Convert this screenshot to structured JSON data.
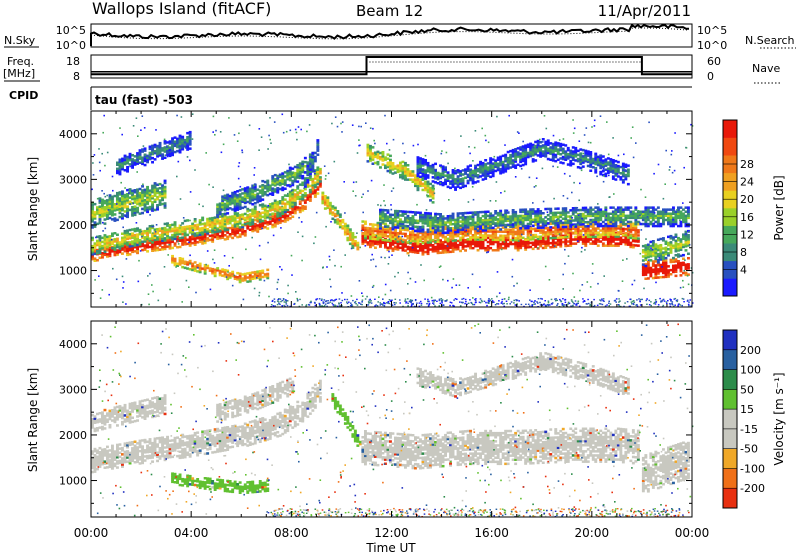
{
  "header": {
    "radar": "Wallops Island (fitACF)",
    "beam": "Beam 12",
    "date": "11/Apr/2011"
  },
  "side_labels": {
    "nsky": "N.Sky",
    "freq": "Freq.",
    "freq_unit": "[MHz]",
    "cpid": "CPID",
    "nsearch": "N.Search",
    "nave": "Nave"
  },
  "cpid_text": "tau (fast) -503",
  "noise_panel": {
    "left_ticks": [
      "10^5",
      "10^0"
    ],
    "right_ticks": [
      "10^5",
      "10^0"
    ]
  },
  "freq_panel": {
    "left_ticks": [
      "18",
      "8"
    ],
    "right_ticks": [
      "60",
      "0"
    ],
    "nave_series": {
      "x": [
        0,
        11.0,
        11.0,
        22.0,
        22.0,
        24
      ],
      "y": [
        8,
        8,
        57,
        57,
        8,
        8
      ]
    },
    "freq_series": {
      "x": [
        0,
        24
      ],
      "y": [
        10.5,
        10.5
      ]
    }
  },
  "x_axis": {
    "label": "Time UT",
    "range": [
      0,
      24
    ],
    "ticks": [
      "00:00",
      "04:00",
      "08:00",
      "12:00",
      "16:00",
      "20:00",
      "00:00"
    ]
  },
  "y_axis": {
    "label": "Slant Range [km]",
    "range": [
      200,
      4500
    ],
    "ticks": [
      "1000",
      "2000",
      "3000",
      "4000"
    ]
  },
  "chart_data": [
    {
      "type": "heatmap",
      "title": "Power",
      "x_range": [
        0,
        24
      ],
      "y_range": [
        200,
        4500
      ],
      "colorbar": {
        "label": "Power [dB]",
        "ticks": [
          "4",
          "8",
          "12",
          "16",
          "20",
          "24",
          "28"
        ],
        "colors": [
          "#1a1aff",
          "#2850c0",
          "#3a8a78",
          "#46a85a",
          "#9ad02a",
          "#e8d020",
          "#f0a020",
          "#f07818",
          "#f04810",
          "#e81808"
        ]
      },
      "bands": [
        {
          "x": [
            0.0,
            2.0,
            4.0,
            6.0,
            7.5,
            8.5,
            9.1
          ],
          "y": [
            1350,
            1550,
            1700,
            1900,
            2150,
            2500,
            2900
          ],
          "w": 140,
          "level": 8
        },
        {
          "x": [
            0.0,
            2.0,
            4.0,
            6.0,
            7.5,
            8.5,
            9.1
          ],
          "y": [
            1550,
            1780,
            1950,
            2150,
            2400,
            2800,
            3150
          ],
          "w": 190,
          "level": 4
        },
        {
          "x": [
            0.0,
            1.5,
            3.0
          ],
          "y": [
            2250,
            2500,
            2700
          ],
          "w": 300,
          "level": 3
        },
        {
          "x": [
            1.0,
            2.5,
            4.0
          ],
          "y": [
            3300,
            3600,
            3900
          ],
          "w": 200,
          "level": 1
        },
        {
          "x": [
            3.2,
            4.5,
            6.0,
            7.0
          ],
          "y": [
            1250,
            1050,
            850,
            950
          ],
          "w": 110,
          "level": 6
        },
        {
          "x": [
            5.0,
            6.5,
            8.0,
            8.8
          ],
          "y": [
            2400,
            2700,
            3100,
            3400
          ],
          "w": 220,
          "level": 2
        },
        {
          "x": [
            8.5,
            9.0
          ],
          "y": [
            3000,
            3700
          ],
          "w": 200,
          "level": 1
        },
        {
          "x": [
            9.2,
            10.0,
            10.6
          ],
          "y": [
            2600,
            2000,
            1500
          ],
          "w": 160,
          "level": 5
        },
        {
          "x": [
            10.8,
            13.0,
            15.0,
            17.0,
            19.0,
            21.0,
            21.9
          ],
          "y": [
            1700,
            1500,
            1600,
            1600,
            1700,
            1700,
            1650
          ],
          "w": 150,
          "level": 9
        },
        {
          "x": [
            10.8,
            13.0,
            15.0,
            17.0,
            19.0,
            21.0,
            21.9
          ],
          "y": [
            1900,
            1780,
            1870,
            1850,
            1920,
            1930,
            1880
          ],
          "w": 180,
          "level": 6
        },
        {
          "x": [
            11.5,
            14.0,
            17.0,
            20.0,
            23.9
          ],
          "y": [
            2150,
            2050,
            2150,
            2200,
            2200
          ],
          "w": 220,
          "level": 2
        },
        {
          "x": [
            11.0,
            12.5,
            13.6
          ],
          "y": [
            3600,
            3200,
            2700
          ],
          "w": 200,
          "level": 4
        },
        {
          "x": [
            13.0,
            14.5,
            16.0,
            18.0,
            20.0,
            21.5
          ],
          "y": [
            3300,
            3000,
            3300,
            3700,
            3400,
            3100
          ],
          "w": 220,
          "level": 1
        },
        {
          "x": [
            22.0,
            23.9
          ],
          "y": [
            1000,
            1100
          ],
          "w": 180,
          "level": 9
        },
        {
          "x": [
            22.0,
            23.9
          ],
          "y": [
            1350,
            1650
          ],
          "w": 260,
          "level": 3
        }
      ]
    },
    {
      "type": "heatmap",
      "title": "Velocity",
      "x_range": [
        0,
        24
      ],
      "y_range": [
        200,
        4500
      ],
      "colorbar": {
        "label": "Velocity [m s⁻¹]",
        "ticks": [
          "200",
          "100",
          "50",
          "15",
          "-15",
          "-50",
          "-100",
          "-200"
        ],
        "colors": [
          "#2030c0",
          "#2860a0",
          "#2c8c4a",
          "#60c030",
          "#c8c8c0",
          "#c8c8c0",
          "#f0a828",
          "#f07018",
          "#e83010"
        ]
      },
      "bands": [
        {
          "x": [
            0.0,
            2.0,
            4.0,
            6.0,
            7.5,
            8.5,
            9.1
          ],
          "y": [
            1450,
            1650,
            1800,
            2000,
            2250,
            2600,
            3000
          ],
          "w": 260,
          "color": "#c8c8c0"
        },
        {
          "x": [
            0.0,
            1.5,
            3.0
          ],
          "y": [
            2300,
            2500,
            2700
          ],
          "w": 220,
          "color": "#c8c8c0"
        },
        {
          "x": [
            3.2,
            4.5,
            6.0,
            7.0
          ],
          "y": [
            1050,
            950,
            850,
            900
          ],
          "w": 120,
          "color": "#60c030"
        },
        {
          "x": [
            5.0,
            6.5,
            8.0
          ],
          "y": [
            2500,
            2750,
            3100
          ],
          "w": 200,
          "color": "#c8c8c0"
        },
        {
          "x": [
            9.6,
            10.2,
            10.7
          ],
          "y": [
            2800,
            2300,
            1800
          ],
          "w": 130,
          "color": "#60c030"
        },
        {
          "x": [
            10.8,
            13.0,
            15.0,
            17.0,
            19.0,
            21.0,
            21.9
          ],
          "y": [
            1750,
            1650,
            1750,
            1750,
            1800,
            1800,
            1750
          ],
          "w": 380,
          "color": "#c8c8c0"
        },
        {
          "x": [
            13.0,
            14.5,
            16.0,
            18.0,
            20.0,
            21.5
          ],
          "y": [
            3300,
            3050,
            3300,
            3650,
            3350,
            3050
          ],
          "w": 200,
          "color": "#c8c8c0"
        },
        {
          "x": [
            22.0,
            23.9
          ],
          "y": [
            1150,
            1500
          ],
          "w": 420,
          "color": "#c8c8c0"
        }
      ]
    }
  ]
}
